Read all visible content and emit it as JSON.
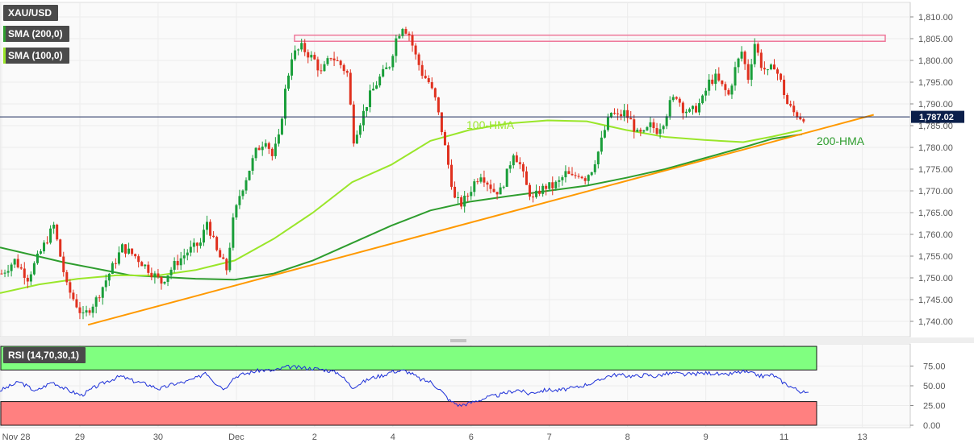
{
  "symbol": "XAU/USD",
  "indicators": [
    {
      "label": "SMA (200,0)",
      "color": "#2e9d2e"
    },
    {
      "label": "SMA (100,0)",
      "color": "#9ae62a"
    }
  ],
  "last_price_label": "1,787.02",
  "rsi_label": "RSI (14,70,30,1)",
  "annotations": {
    "hma100": "100-HMA",
    "hma200": "200-HMA"
  },
  "colors": {
    "bull": "#1a9e3a",
    "bear": "#e0301e",
    "sma200": "#2e9d2e",
    "sma100": "#9ae62a",
    "trend": "#ff9900",
    "resistance": "#ee7799",
    "rsi_line": "#1c2fd8",
    "overbought": "#80ff80",
    "oversold": "#ff8080",
    "price_line": "#1a2a5a"
  },
  "chart_data": [
    {
      "type": "candlestick",
      "title": "XAU/USD",
      "ylim": [
        1736,
        1812
      ],
      "y_ticks": [
        "1,740.00",
        "1,745.00",
        "1,750.00",
        "1,755.00",
        "1,760.00",
        "1,765.00",
        "1,770.00",
        "1,775.00",
        "1,780.00",
        "1,785.00",
        "1,790.00",
        "1,795.00",
        "1,800.00",
        "1,805.00",
        "1,810.00"
      ],
      "y_tick_values": [
        1740,
        1745,
        1750,
        1755,
        1760,
        1765,
        1770,
        1775,
        1780,
        1785,
        1790,
        1795,
        1800,
        1805,
        1810
      ],
      "x_ticks": [
        {
          "label": "Nov 28",
          "t": 0.5
        },
        {
          "label": "29",
          "t": 24.5
        },
        {
          "label": "30",
          "t": 48.5
        },
        {
          "label": "Dec",
          "t": 72.5
        },
        {
          "label": "2",
          "t": 96.5
        },
        {
          "label": "4",
          "t": 120.5
        },
        {
          "label": "6",
          "t": 144.5
        },
        {
          "label": "7",
          "t": 168.5
        },
        {
          "label": "8",
          "t": 192.5
        },
        {
          "label": "9",
          "t": 216.5
        },
        {
          "label": "11",
          "t": 240.5
        },
        {
          "label": "13",
          "t": 264.5
        }
      ],
      "last_price": 1787.02,
      "candle_anchors": [
        [
          0,
          1751
        ],
        [
          4,
          1754
        ],
        [
          8,
          1750
        ],
        [
          12,
          1756
        ],
        [
          16,
          1762
        ],
        [
          20,
          1748
        ],
        [
          25,
          1741
        ],
        [
          29,
          1745
        ],
        [
          33,
          1751
        ],
        [
          37,
          1757
        ],
        [
          41,
          1755
        ],
        [
          45,
          1752
        ],
        [
          49,
          1749
        ],
        [
          53,
          1753
        ],
        [
          57,
          1756
        ],
        [
          61,
          1758
        ],
        [
          63,
          1763
        ],
        [
          66,
          1756
        ],
        [
          69,
          1752
        ],
        [
          71,
          1763
        ],
        [
          73,
          1769
        ],
        [
          75,
          1773
        ],
        [
          78,
          1779
        ],
        [
          81,
          1782
        ],
        [
          83,
          1778
        ],
        [
          85,
          1782
        ],
        [
          87,
          1793
        ],
        [
          89,
          1801
        ],
        [
          92,
          1803
        ],
        [
          96,
          1800
        ],
        [
          98,
          1797
        ],
        [
          101,
          1801
        ],
        [
          104,
          1799
        ],
        [
          106,
          1797
        ],
        [
          108,
          1782
        ],
        [
          111,
          1788
        ],
        [
          113,
          1792
        ],
        [
          116,
          1796
        ],
        [
          119,
          1799
        ],
        [
          121,
          1805
        ],
        [
          123,
          1808
        ],
        [
          125,
          1806
        ],
        [
          127,
          1801
        ],
        [
          129,
          1797
        ],
        [
          131,
          1795
        ],
        [
          133,
          1791
        ],
        [
          135,
          1784
        ],
        [
          137,
          1776
        ],
        [
          139,
          1768
        ],
        [
          141,
          1767
        ],
        [
          143,
          1769
        ],
        [
          145,
          1772
        ],
        [
          147,
          1774
        ],
        [
          149,
          1772
        ],
        [
          151,
          1770
        ],
        [
          153,
          1770
        ],
        [
          155,
          1774
        ],
        [
          157,
          1779
        ],
        [
          159,
          1776
        ],
        [
          161,
          1771
        ],
        [
          163,
          1768
        ],
        [
          165,
          1770
        ],
        [
          167,
          1771
        ],
        [
          169,
          1771
        ],
        [
          171,
          1772
        ],
        [
          173,
          1774
        ],
        [
          175,
          1773
        ],
        [
          177,
          1774
        ],
        [
          179,
          1773
        ],
        [
          181,
          1775
        ],
        [
          183,
          1779
        ],
        [
          185,
          1784
        ],
        [
          187,
          1788
        ],
        [
          189,
          1787
        ],
        [
          191,
          1788
        ],
        [
          193,
          1786
        ],
        [
          195,
          1783
        ],
        [
          197,
          1783
        ],
        [
          199,
          1785
        ],
        [
          201,
          1784
        ],
        [
          203,
          1786
        ],
        [
          205,
          1790
        ],
        [
          207,
          1792
        ],
        [
          209,
          1789
        ],
        [
          211,
          1788
        ],
        [
          213,
          1789
        ],
        [
          215,
          1791
        ],
        [
          217,
          1795
        ],
        [
          219,
          1796
        ],
        [
          221,
          1794
        ],
        [
          223,
          1792
        ],
        [
          225,
          1798
        ],
        [
          227,
          1802
        ],
        [
          229,
          1796
        ],
        [
          231,
          1804
        ],
        [
          233,
          1799
        ],
        [
          235,
          1797
        ],
        [
          237,
          1799
        ],
        [
          239,
          1795
        ],
        [
          241,
          1790
        ],
        [
          243,
          1788
        ],
        [
          245,
          1787
        ],
        [
          246,
          1787
        ]
      ],
      "series": [
        {
          "name": "SMA (200,0)",
          "points": [
            [
              0,
              1757
            ],
            [
              20,
              1753.5
            ],
            [
              40,
              1750.6
            ],
            [
              60,
              1749.8
            ],
            [
              72,
              1749.6
            ],
            [
              84,
              1751
            ],
            [
              96,
              1754
            ],
            [
              108,
              1758
            ],
            [
              120,
              1762
            ],
            [
              132,
              1765.5
            ],
            [
              144,
              1767.5
            ],
            [
              156,
              1768.8
            ],
            [
              168,
              1770
            ],
            [
              180,
              1771.2
            ],
            [
              192,
              1773
            ],
            [
              204,
              1775
            ],
            [
              216,
              1777.5
            ],
            [
              228,
              1780
            ],
            [
              237,
              1782
            ],
            [
              246,
              1783
            ]
          ]
        },
        {
          "name": "SMA (100,0)",
          "points": [
            [
              0,
              1746.5
            ],
            [
              12,
              1748.5
            ],
            [
              24,
              1749.8
            ],
            [
              36,
              1750.6
            ],
            [
              48,
              1750.5
            ],
            [
              60,
              1751.8
            ],
            [
              72,
              1754
            ],
            [
              84,
              1759
            ],
            [
              96,
              1765
            ],
            [
              108,
              1772
            ],
            [
              120,
              1776
            ],
            [
              132,
              1781.5
            ],
            [
              144,
              1784
            ],
            [
              156,
              1785.5
            ],
            [
              168,
              1786.2
            ],
            [
              180,
              1786
            ],
            [
              192,
              1784
            ],
            [
              204,
              1782.4
            ],
            [
              216,
              1781.7
            ],
            [
              228,
              1781.2
            ],
            [
              237,
              1782.5
            ],
            [
              246,
              1784
            ]
          ]
        }
      ],
      "trendline": [
        [
          27,
          1739.2
        ],
        [
          268,
          1787.5
        ]
      ],
      "resistance_zone": {
        "x": [
          90,
          272
        ],
        "y": [
          1804.4,
          1805.8
        ]
      }
    },
    {
      "type": "line",
      "title": "RSI (14,70,30,1)",
      "ylim": [
        0,
        85
      ],
      "y_ticks": [
        "0.00",
        "25.00",
        "50.00",
        "75.00"
      ],
      "y_tick_values": [
        0,
        25,
        50,
        75
      ],
      "overbought": 70,
      "oversold": 30,
      "rsi_anchors": [
        [
          0,
          44
        ],
        [
          6,
          55
        ],
        [
          11,
          43
        ],
        [
          16,
          55
        ],
        [
          21,
          44
        ],
        [
          25,
          38
        ],
        [
          29,
          48
        ],
        [
          33,
          56
        ],
        [
          37,
          62
        ],
        [
          41,
          56
        ],
        [
          45,
          52
        ],
        [
          49,
          46
        ],
        [
          53,
          52
        ],
        [
          57,
          55
        ],
        [
          61,
          61
        ],
        [
          63,
          68
        ],
        [
          66,
          54
        ],
        [
          69,
          46
        ],
        [
          71,
          58
        ],
        [
          73,
          63
        ],
        [
          76,
          66
        ],
        [
          80,
          70
        ],
        [
          84,
          69
        ],
        [
          88,
          74
        ],
        [
          92,
          73
        ],
        [
          96,
          72
        ],
        [
          100,
          70
        ],
        [
          104,
          66
        ],
        [
          108,
          48
        ],
        [
          111,
          54
        ],
        [
          114,
          60
        ],
        [
          118,
          64
        ],
        [
          120,
          68
        ],
        [
          124,
          69
        ],
        [
          126,
          66
        ],
        [
          129,
          58
        ],
        [
          132,
          55
        ],
        [
          135,
          45
        ],
        [
          138,
          31
        ],
        [
          141,
          25
        ],
        [
          144,
          28
        ],
        [
          147,
          32
        ],
        [
          150,
          36
        ],
        [
          153,
          38
        ],
        [
          156,
          42
        ],
        [
          159,
          45
        ],
        [
          162,
          40
        ],
        [
          165,
          43
        ],
        [
          168,
          45
        ],
        [
          171,
          44
        ],
        [
          174,
          46
        ],
        [
          177,
          48
        ],
        [
          180,
          52
        ],
        [
          183,
          55
        ],
        [
          186,
          62
        ],
        [
          189,
          64
        ],
        [
          192,
          63
        ],
        [
          195,
          62
        ],
        [
          198,
          64
        ],
        [
          201,
          62
        ],
        [
          204,
          65
        ],
        [
          207,
          66
        ],
        [
          210,
          64
        ],
        [
          213,
          65
        ],
        [
          216,
          66
        ],
        [
          219,
          66
        ],
        [
          222,
          63
        ],
        [
          225,
          66
        ],
        [
          228,
          68
        ],
        [
          231,
          65
        ],
        [
          234,
          62
        ],
        [
          237,
          64
        ],
        [
          240,
          55
        ],
        [
          243,
          48
        ],
        [
          246,
          42
        ],
        [
          248,
          40
        ]
      ]
    }
  ]
}
